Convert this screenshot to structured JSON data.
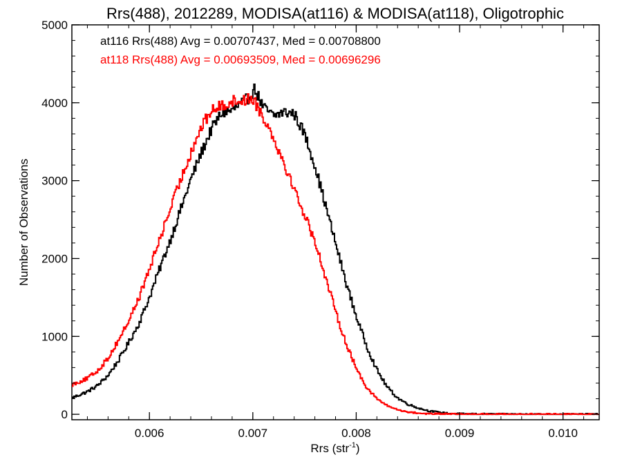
{
  "chart_data": {
    "type": "line",
    "title": "Rrs(488), 2012289, MODISA(at116) & MODISA(at118), Oligotrophic",
    "xlabel": "Rrs (str",
    "xlabel_sup": "-1",
    "xlabel_end": ")",
    "ylabel": "Number of Observations",
    "xlim": [
      0.00525,
      0.01035
    ],
    "ylim": [
      -70,
      5000
    ],
    "grid": false,
    "legend_position": "top-left",
    "x_ticks": [
      {
        "value": 0.006,
        "label": "0.006"
      },
      {
        "value": 0.007,
        "label": "0.007"
      },
      {
        "value": 0.008,
        "label": "0.008"
      },
      {
        "value": 0.009,
        "label": "0.009"
      },
      {
        "value": 0.01,
        "label": "0.010"
      }
    ],
    "y_ticks": [
      {
        "value": 0,
        "label": "0"
      },
      {
        "value": 1000,
        "label": "1000"
      },
      {
        "value": 2000,
        "label": "2000"
      },
      {
        "value": 3000,
        "label": "3000"
      },
      {
        "value": 4000,
        "label": "4000"
      },
      {
        "value": 5000,
        "label": "5000"
      }
    ],
    "series": [
      {
        "name": "at116",
        "legend_text": "at116 Rrs(488) Avg = 0.00707437, Med = 0.00708800",
        "color": "#000000",
        "points": [
          [
            0.00525,
            210
          ],
          [
            0.0054,
            290
          ],
          [
            0.0055,
            370
          ],
          [
            0.0056,
            500
          ],
          [
            0.0057,
            690
          ],
          [
            0.0058,
            920
          ],
          [
            0.0059,
            1170
          ],
          [
            0.006,
            1500
          ],
          [
            0.0061,
            1870
          ],
          [
            0.0062,
            2230
          ],
          [
            0.0063,
            2620
          ],
          [
            0.0064,
            3010
          ],
          [
            0.0065,
            3350
          ],
          [
            0.0066,
            3660
          ],
          [
            0.0067,
            3870
          ],
          [
            0.0068,
            3900
          ],
          [
            0.00695,
            4050
          ],
          [
            0.00702,
            4180
          ],
          [
            0.0071,
            3940
          ],
          [
            0.0072,
            3830
          ],
          [
            0.0073,
            3880
          ],
          [
            0.0074,
            3860
          ],
          [
            0.0075,
            3600
          ],
          [
            0.0076,
            3200
          ],
          [
            0.0077,
            2700
          ],
          [
            0.0078,
            2200
          ],
          [
            0.0079,
            1700
          ],
          [
            0.008,
            1260
          ],
          [
            0.0081,
            880
          ],
          [
            0.0082,
            570
          ],
          [
            0.0083,
            350
          ],
          [
            0.0084,
            210
          ],
          [
            0.0085,
            130
          ],
          [
            0.0086,
            80
          ],
          [
            0.0087,
            45
          ],
          [
            0.0088,
            25
          ],
          [
            0.0089,
            10
          ],
          [
            0.009,
            5
          ],
          [
            0.0092,
            2
          ],
          [
            0.0095,
            1
          ],
          [
            0.01035,
            0
          ]
        ]
      },
      {
        "name": "at118",
        "legend_text": "at118 Rrs(488) Avg = 0.00693509, Med = 0.00696296",
        "color": "#ff0000",
        "points": [
          [
            0.00525,
            380
          ],
          [
            0.0054,
            460
          ],
          [
            0.0055,
            560
          ],
          [
            0.0056,
            720
          ],
          [
            0.0057,
            950
          ],
          [
            0.0058,
            1200
          ],
          [
            0.0059,
            1500
          ],
          [
            0.006,
            1860
          ],
          [
            0.0061,
            2250
          ],
          [
            0.0062,
            2630
          ],
          [
            0.0063,
            3000
          ],
          [
            0.0064,
            3360
          ],
          [
            0.0065,
            3680
          ],
          [
            0.0066,
            3900
          ],
          [
            0.0067,
            3960
          ],
          [
            0.0068,
            4020
          ],
          [
            0.0069,
            4030
          ],
          [
            0.007,
            4060
          ],
          [
            0.0071,
            3820
          ],
          [
            0.0072,
            3560
          ],
          [
            0.0073,
            3230
          ],
          [
            0.0074,
            2900
          ],
          [
            0.0075,
            2560
          ],
          [
            0.0076,
            2230
          ],
          [
            0.0077,
            1780
          ],
          [
            0.0078,
            1320
          ],
          [
            0.0079,
            920
          ],
          [
            0.008,
            590
          ],
          [
            0.0081,
            350
          ],
          [
            0.0082,
            200
          ],
          [
            0.0083,
            110
          ],
          [
            0.0084,
            60
          ],
          [
            0.0085,
            30
          ],
          [
            0.0086,
            15
          ],
          [
            0.0087,
            7
          ],
          [
            0.0089,
            3
          ],
          [
            0.0092,
            1
          ],
          [
            0.01035,
            0
          ]
        ]
      }
    ]
  }
}
